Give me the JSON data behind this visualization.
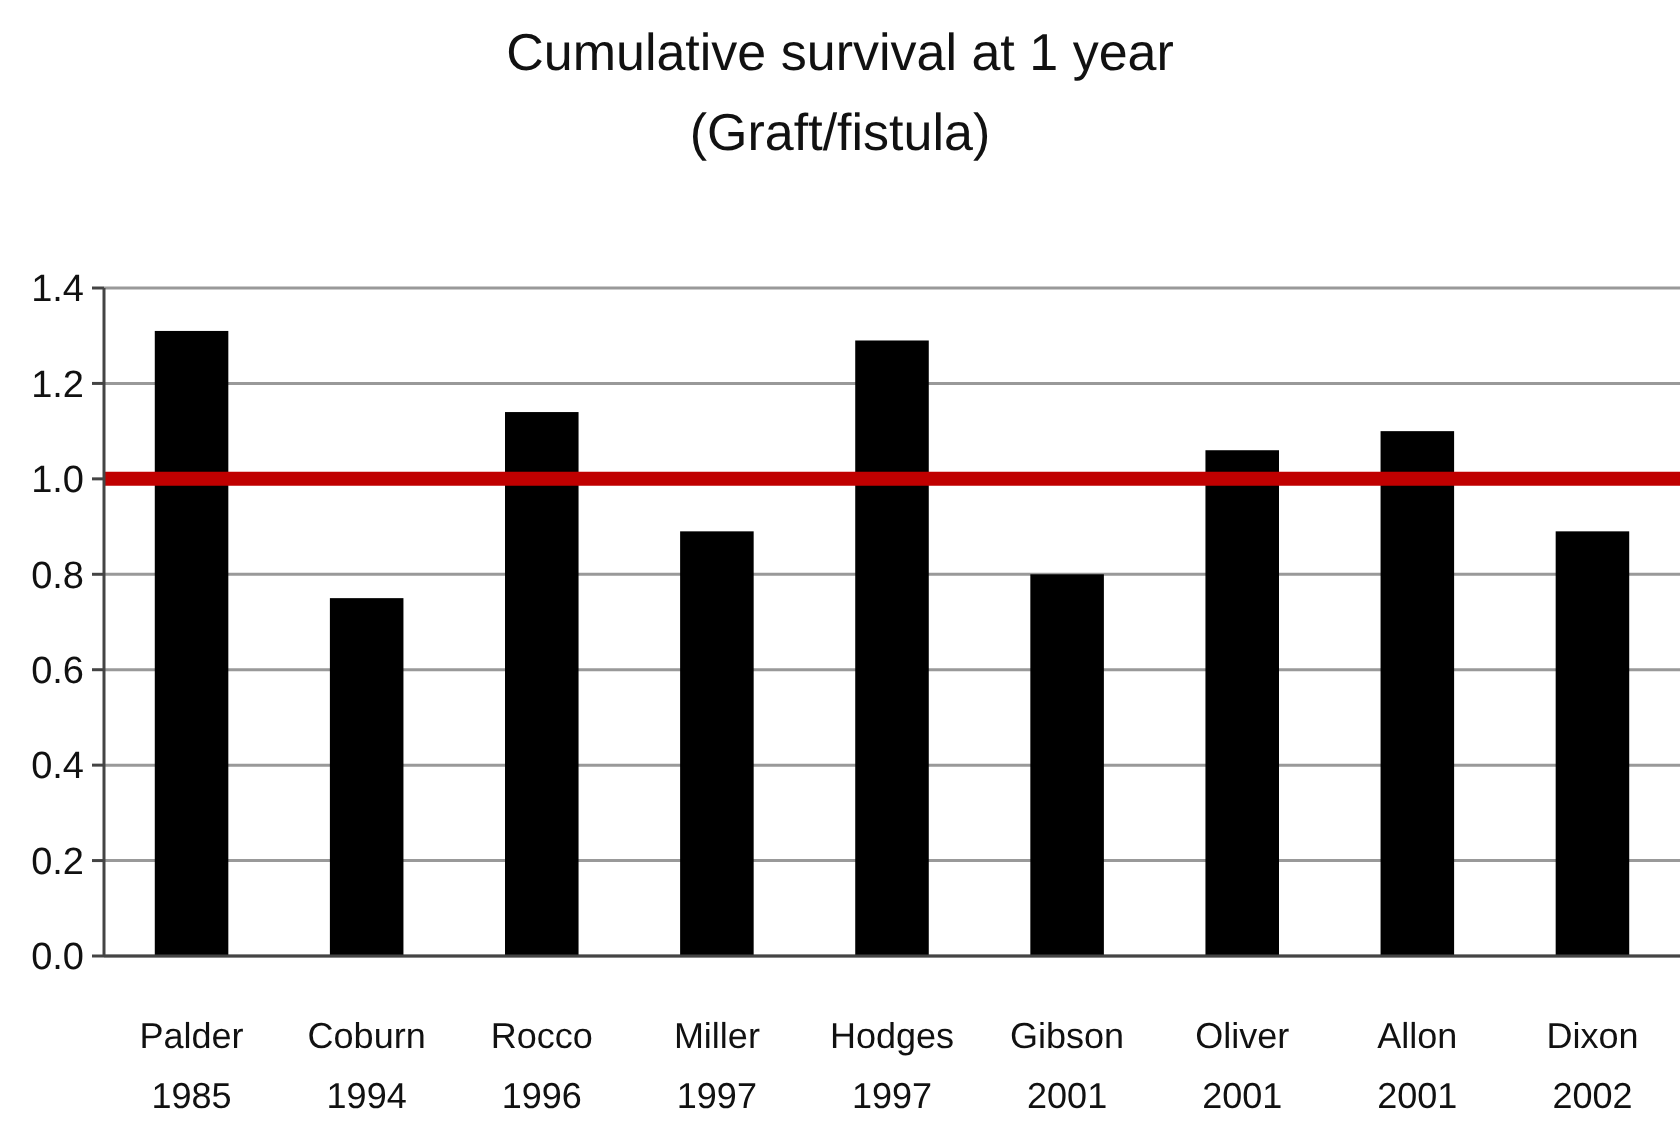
{
  "chart_data": {
    "type": "bar",
    "title": "Cumulative survival at 1 year",
    "subtitle": "(Graft/fistula)",
    "categories": [
      "Palder\n1985",
      "Coburn\n1994",
      "Rocco\n1996",
      "Miller\n1997",
      "Hodges\n1997",
      "Gibson\n2001",
      "Oliver\n2001",
      "Allon\n2001",
      "Dixon\n2002"
    ],
    "values": [
      1.31,
      0.75,
      1.14,
      0.89,
      1.29,
      0.8,
      1.06,
      1.1,
      0.89
    ],
    "color": "#000000",
    "ylim": [
      0,
      1.4
    ],
    "yticks": [
      {
        "value": 0,
        "label": "0.0"
      },
      {
        "value": 0.2,
        "label": "0.2"
      },
      {
        "value": 0.4,
        "label": "0.4"
      },
      {
        "value": 0.6,
        "label": "0.6"
      },
      {
        "value": 0.8,
        "label": "0.8"
      },
      {
        "value": 1,
        "label": "1.0"
      },
      {
        "value": 1.2,
        "label": "1.2"
      },
      {
        "value": 1.4,
        "label": "1.4"
      }
    ],
    "grid": "y",
    "ref_lines": [
      {
        "axis": "y",
        "value": 1.0,
        "color": "#c00000"
      }
    ]
  }
}
